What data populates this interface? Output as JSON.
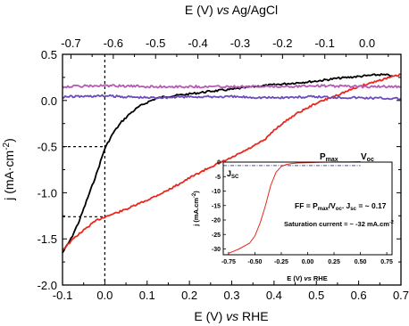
{
  "chart_data": {
    "type": "line",
    "main": {
      "x_bottom": {
        "label_parts": [
          "E (V) ",
          "vs",
          " RHE"
        ],
        "range": [
          -0.1,
          0.7
        ],
        "ticks": [
          "-0.1",
          "0.0",
          "0.1",
          "0.2",
          "0.3",
          "0.4",
          "0.5",
          "0.6",
          "0.7"
        ],
        "tick_values": [
          -0.1,
          0.0,
          0.1,
          0.2,
          0.3,
          0.4,
          0.5,
          0.6,
          0.7
        ]
      },
      "x_top": {
        "label_parts": [
          "E (V) ",
          "vs",
          " Ag/AgCl"
        ],
        "ticks": [
          "-0.7",
          "-0.6",
          "-0.5",
          "-0.4",
          "-0.3",
          "-0.2",
          "-0.1",
          "0.0"
        ],
        "tick_values": [
          -0.7,
          -0.6,
          -0.5,
          -0.4,
          -0.3,
          -0.2,
          -0.1,
          0.0
        ],
        "rhe_offset": 0.62
      },
      "y": {
        "label_parts": [
          "j (mA·cm",
          "-2",
          ")"
        ],
        "range": [
          -2.0,
          0.5
        ],
        "ticks": [
          "-2.0",
          "-1.5",
          "-1.0",
          "-0.5",
          "0.0",
          "0.5"
        ],
        "tick_values": [
          -2.0,
          -1.5,
          -1.0,
          -0.5,
          0.0,
          0.5
        ]
      },
      "series": [
        {
          "color": "#000000",
          "x": [
            -0.1,
            -0.08,
            -0.06,
            -0.04,
            -0.02,
            0.0,
            0.02,
            0.04,
            0.06,
            0.08,
            0.1,
            0.12,
            0.14,
            0.16,
            0.18,
            0.2,
            0.25,
            0.3,
            0.35,
            0.4,
            0.45,
            0.5,
            0.55,
            0.6,
            0.65,
            0.68
          ],
          "y": [
            -1.65,
            -1.5,
            -1.3,
            -1.05,
            -0.8,
            -0.52,
            -0.35,
            -0.23,
            -0.14,
            -0.07,
            -0.02,
            0.02,
            0.04,
            0.05,
            0.06,
            0.07,
            0.1,
            0.12,
            0.15,
            0.17,
            0.19,
            0.21,
            0.24,
            0.26,
            0.28,
            0.27
          ]
        },
        {
          "color": "#e8281e",
          "x": [
            -0.1,
            -0.07,
            -0.04,
            -0.02,
            0.0,
            0.02,
            0.05,
            0.1,
            0.15,
            0.2,
            0.25,
            0.3,
            0.35,
            0.38,
            0.4,
            0.42,
            0.45,
            0.5,
            0.55,
            0.6,
            0.65,
            0.7
          ],
          "y": [
            -1.62,
            -1.48,
            -1.37,
            -1.3,
            -1.26,
            -1.23,
            -1.18,
            -1.08,
            -0.97,
            -0.84,
            -0.72,
            -0.62,
            -0.5,
            -0.42,
            -0.32,
            -0.25,
            -0.15,
            -0.03,
            0.06,
            0.15,
            0.22,
            0.28
          ]
        },
        {
          "color": "#b45ab4",
          "x": [
            -0.1,
            0.0,
            0.1,
            0.2,
            0.3,
            0.4,
            0.5,
            0.6,
            0.7
          ],
          "y": [
            0.15,
            0.16,
            0.15,
            0.15,
            0.15,
            0.15,
            0.16,
            0.15,
            0.15
          ]
        },
        {
          "color": "#6a4bbd",
          "x": [
            -0.1,
            0.0,
            0.1,
            0.2,
            0.3,
            0.4,
            0.5,
            0.6,
            0.7
          ],
          "y": [
            0.04,
            0.05,
            0.03,
            0.04,
            0.04,
            0.03,
            0.04,
            0.03,
            0.02
          ]
        }
      ],
      "reference_lines": [
        {
          "x": 0.0,
          "y": -0.5
        },
        {
          "x": 0.0,
          "y": -1.26
        }
      ]
    },
    "inset": {
      "x": {
        "label_parts": [
          "E (V) ",
          "vs",
          " RHE"
        ],
        "range": [
          -0.8,
          0.8
        ],
        "ticks": [
          "-0.75",
          "-0.50",
          "-0.25",
          "0.00",
          "0.25",
          "0.50",
          "0.75"
        ],
        "tick_values": [
          -0.75,
          -0.5,
          -0.25,
          0.0,
          0.25,
          0.5,
          0.75
        ]
      },
      "y": {
        "label_parts": [
          "j (mA.cm",
          "-2",
          ")"
        ],
        "range": [
          -32,
          0
        ],
        "ticks": [
          "0",
          "-5",
          "-10",
          "-15",
          "-20",
          "-25",
          "-30"
        ],
        "tick_values": [
          0,
          -5,
          -10,
          -15,
          -20,
          -25,
          -30
        ]
      },
      "curve": {
        "color": "#e8281e",
        "x": [
          -0.75,
          -0.65,
          -0.55,
          -0.5,
          -0.45,
          -0.4,
          -0.35,
          -0.3,
          -0.25,
          -0.2,
          -0.15,
          -0.1,
          0.0,
          0.1,
          0.2,
          0.3,
          0.4,
          0.5
        ],
        "y": [
          -31.5,
          -30.0,
          -28.0,
          -25.5,
          -21.0,
          -15.0,
          -8.0,
          -3.5,
          -1.5,
          -0.8,
          -0.5,
          -0.3,
          -0.2,
          -0.1,
          0.0,
          0.05,
          0.1,
          0.15
        ]
      },
      "jsc_line_color": "#4a4aa8",
      "labels": {
        "pmax": {
          "main": "P",
          "sub": "max"
        },
        "voc": {
          "main": "V",
          "sub": "oc"
        },
        "jsc": {
          "main": "J",
          "sub": "SC"
        },
        "ff": {
          "p1": "FF = P",
          "s1": "max",
          "p2": "/V",
          "s2": "oc",
          "p3": ". J",
          "s3": "sc",
          "p4": " = ~ 0.17"
        },
        "saturation": "Saturation current = ~ -32 mA.cm",
        "saturation_sup": "-2"
      }
    }
  }
}
